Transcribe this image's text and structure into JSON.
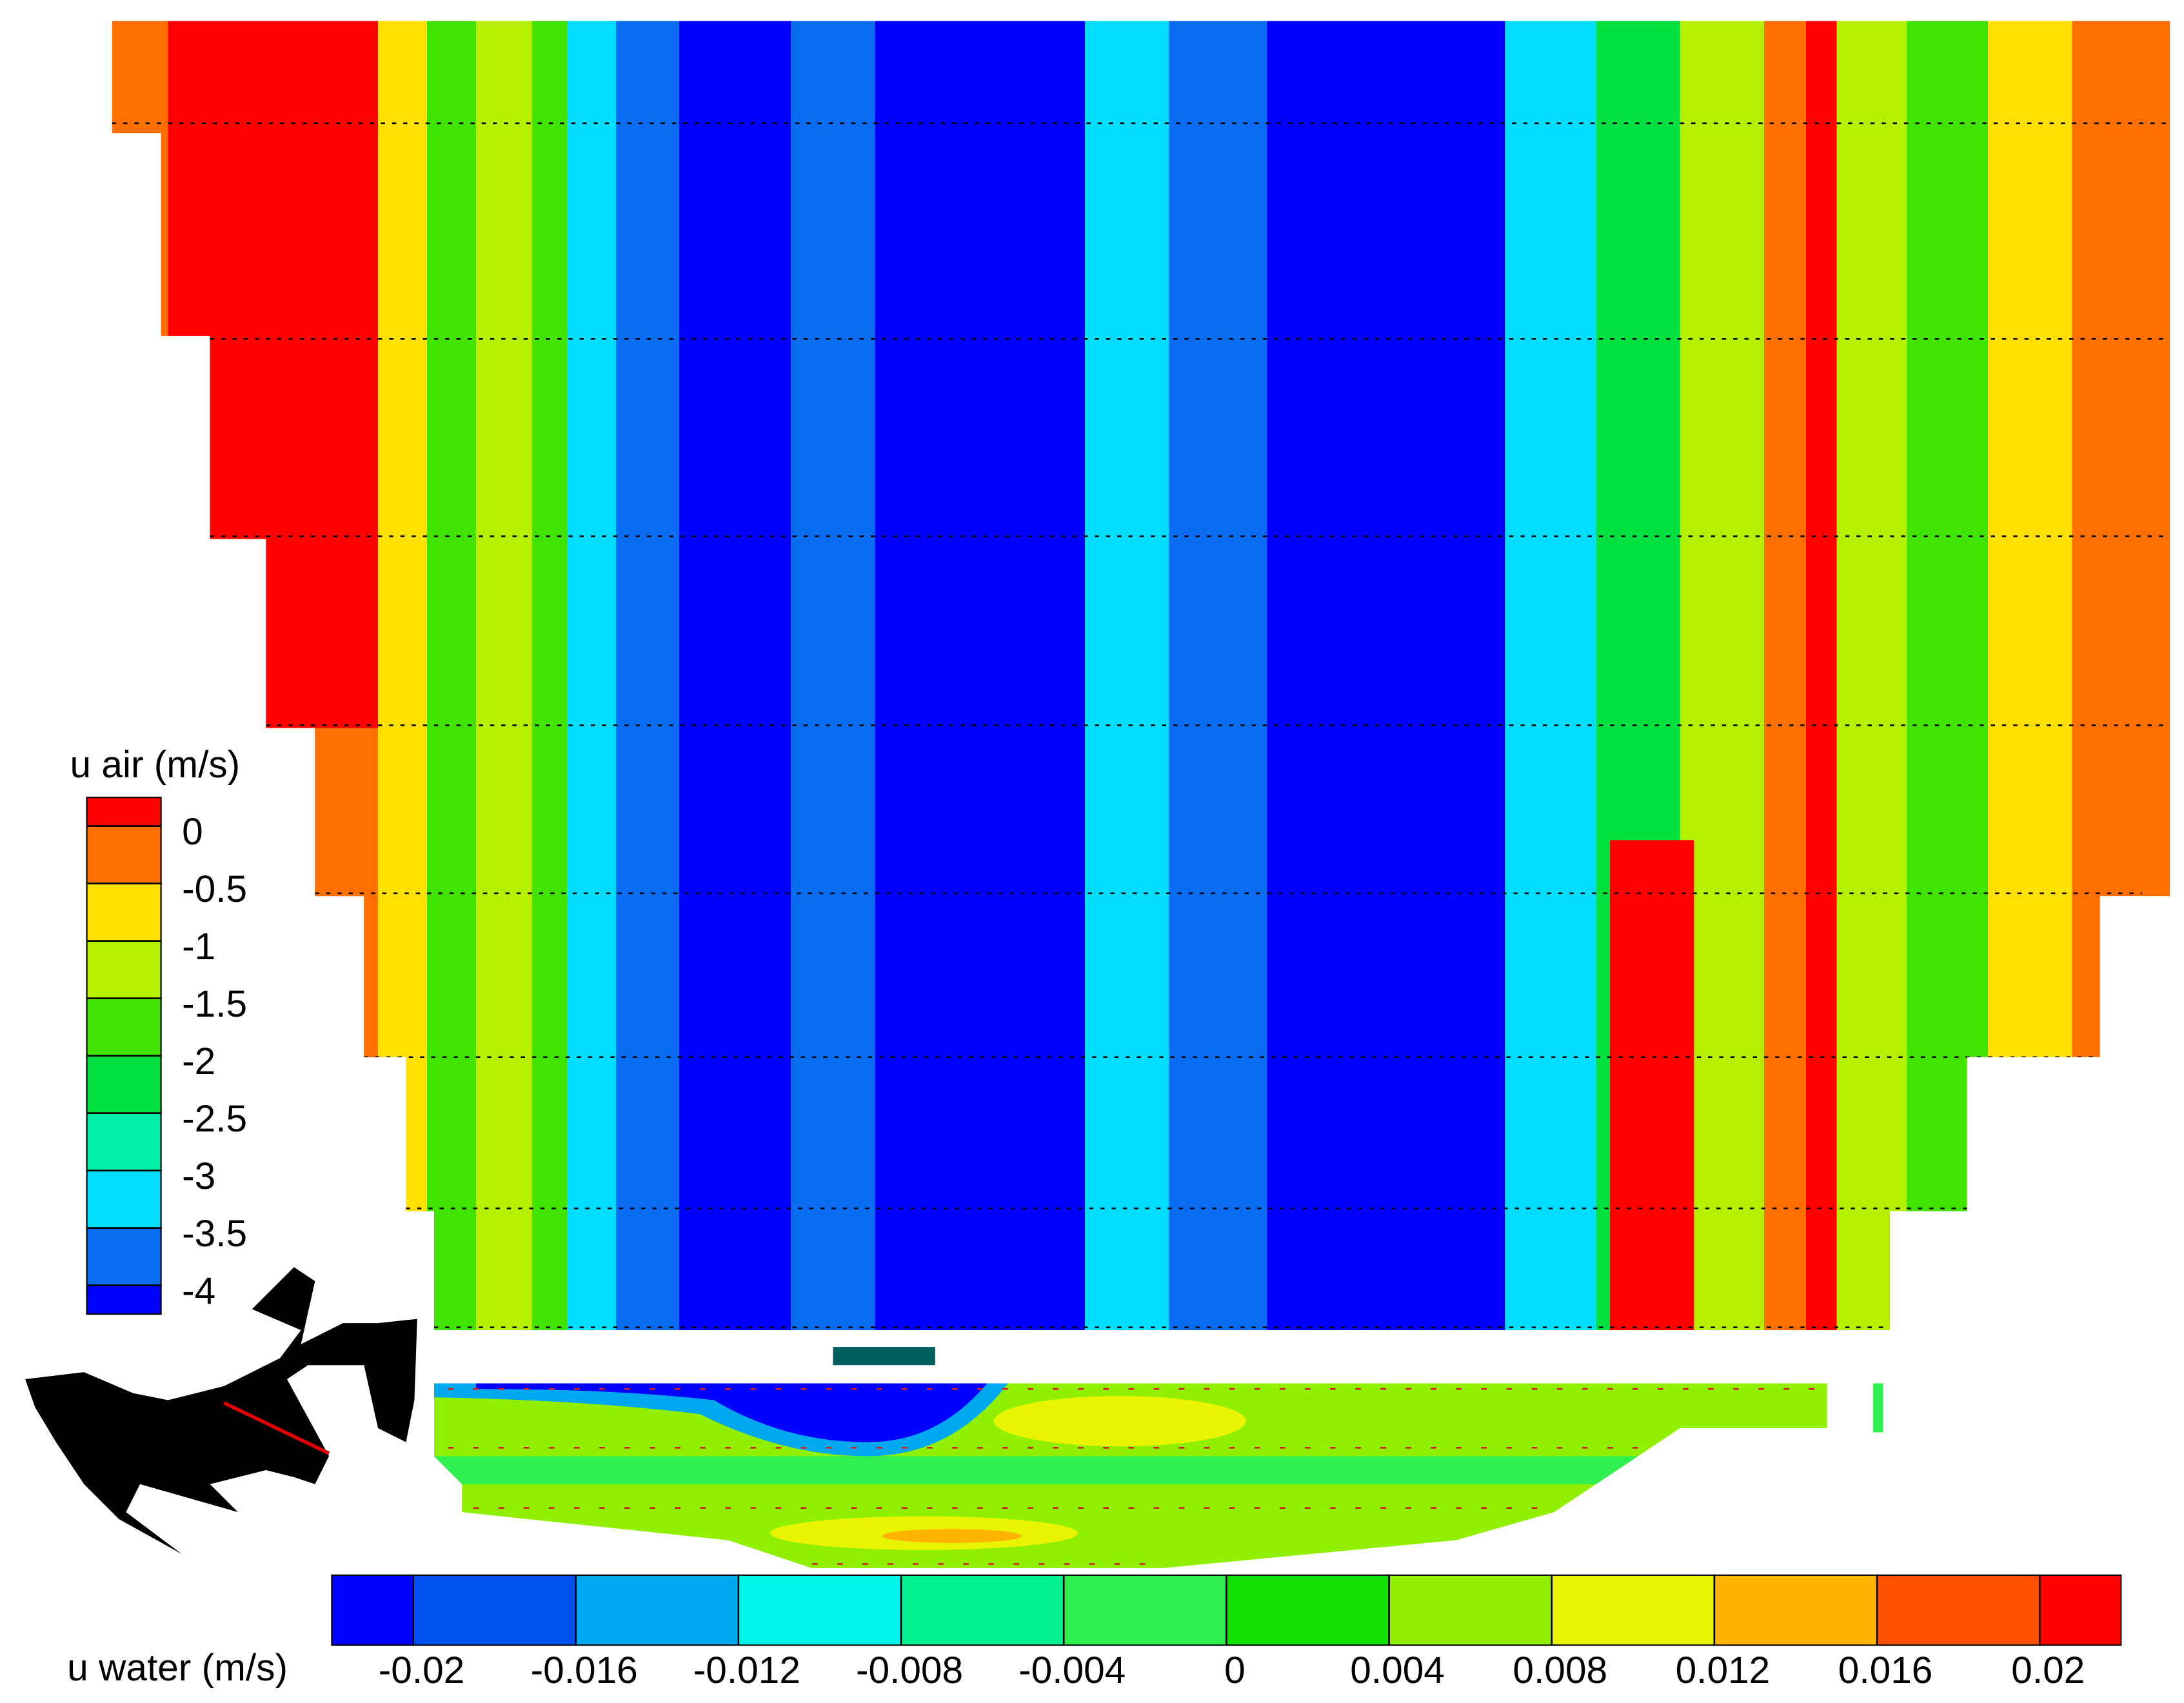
{
  "chart_data": [
    {
      "type": "contour",
      "colorbar": {
        "title": "u air (m/s)",
        "orientation": "vertical",
        "lim": [
          -4.25,
          0.25
        ],
        "ticks": [
          -4,
          -3.5,
          -3,
          -2.5,
          -2,
          -1.5,
          -1,
          -0.5,
          0
        ],
        "colors": [
          "#0000ff",
          "#0a6cf0",
          "#00ddff",
          "#00f0a8",
          "#00e040",
          "#40e400",
          "#b4f000",
          "#ffe000",
          "#ff7000",
          "#ff0000"
        ]
      }
    },
    {
      "type": "contour",
      "colorbar": {
        "title": "u water (m/s)",
        "orientation": "horizontal",
        "lim": [
          -0.022,
          0.022
        ],
        "ticks": [
          -0.02,
          -0.016,
          -0.012,
          -0.008,
          -0.004,
          0,
          0.004,
          0.008,
          0.012,
          0.016,
          0.02
        ],
        "colors": [
          "#0000ff",
          "#0050f0",
          "#00a8f0",
          "#00f4e8",
          "#00f090",
          "#30f050",
          "#10e000",
          "#90f000",
          "#e8f400",
          "#ffb400",
          "#ff5000",
          "#ff0000"
        ]
      }
    }
  ]
}
